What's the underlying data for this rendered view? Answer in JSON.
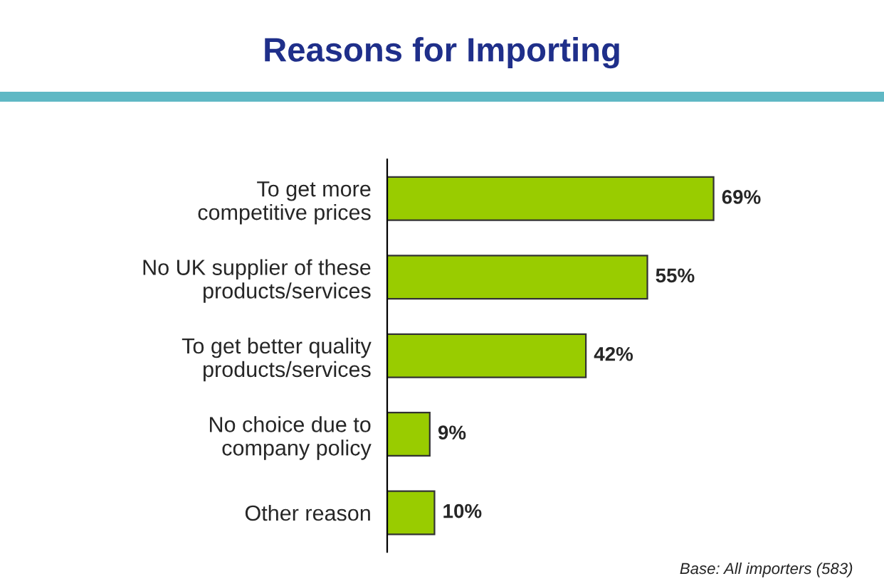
{
  "chart_data": {
    "type": "bar",
    "orientation": "horizontal",
    "title": "Reasons for Importing",
    "categories": [
      "To get more\ncompetitive prices",
      "No UK supplier of these\nproducts/services",
      "To get better quality\nproducts/services",
      "No choice due to\ncompany policy",
      "Other reason"
    ],
    "values": [
      69,
      55,
      42,
      9,
      10
    ],
    "value_labels": [
      "69%",
      "55%",
      "42%",
      "9%",
      "10%"
    ],
    "color": "#99cc00",
    "grid": false,
    "annotations": [
      "Base: All importers (583)"
    ]
  }
}
